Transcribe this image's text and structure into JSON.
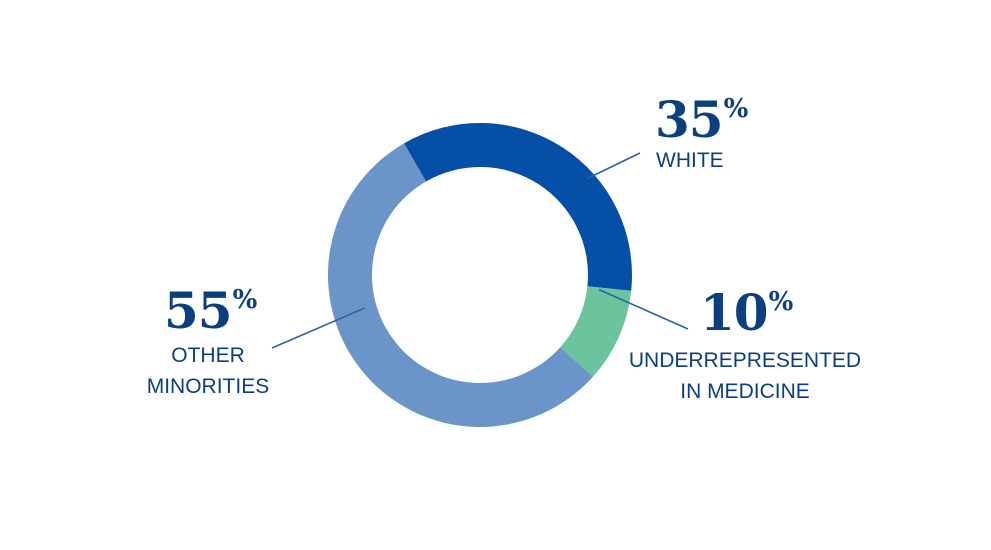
{
  "chart_data": {
    "type": "pie",
    "style": "donut",
    "slices": [
      {
        "label_lines": [
          "WHITE"
        ],
        "value": 35,
        "value_text": "35",
        "unit": "%",
        "color": "#0550a6"
      },
      {
        "label_lines": [
          "UNDERREPRESENTED",
          "IN MEDICINE"
        ],
        "value": 10,
        "value_text": "10",
        "unit": "%",
        "color": "#6cc49f"
      },
      {
        "label_lines": [
          "OTHER",
          "MINORITIES"
        ],
        "value": 55,
        "value_text": "55",
        "unit": "%",
        "color": "#6b95c8"
      }
    ],
    "start_angle_deg": -30,
    "leader_line_color": "#2a62a7",
    "text_color": "#0b3f7f"
  }
}
